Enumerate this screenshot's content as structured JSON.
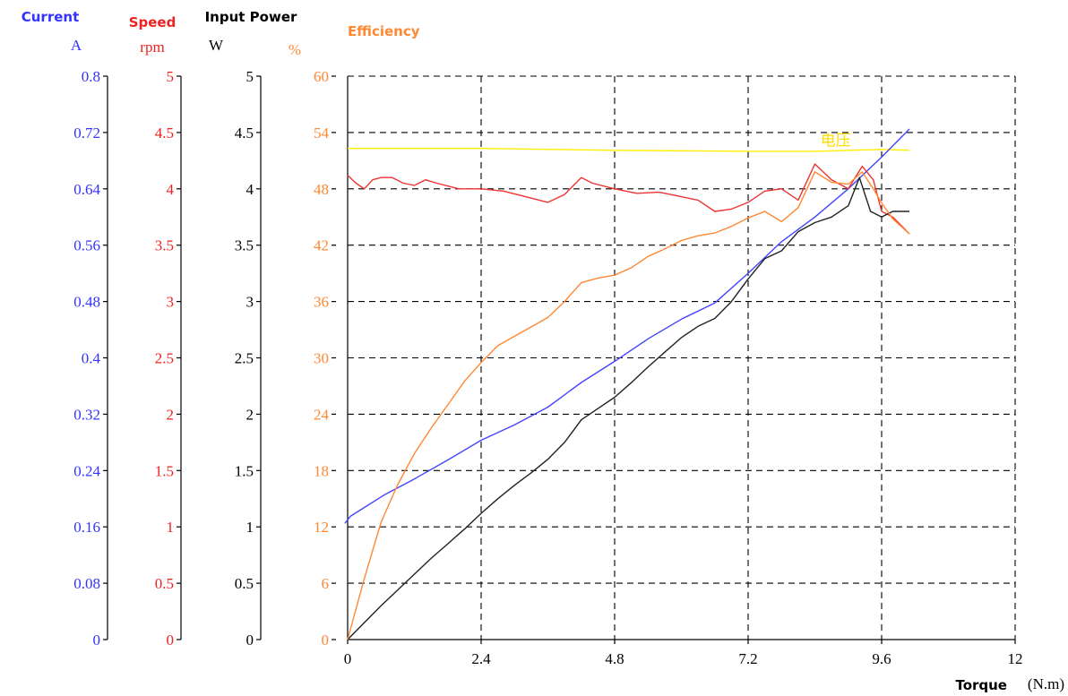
{
  "chart_data": {
    "type": "line",
    "x_axis": {
      "label": "Torque",
      "unit": "(N.m)",
      "range": [
        0,
        12
      ],
      "ticks": [
        0,
        2.4,
        4.8,
        7.2,
        9.6,
        12
      ],
      "tick_labels": [
        "0",
        "2.4",
        "4.8",
        "7.2",
        "9.6",
        "12"
      ]
    },
    "y_axes": [
      {
        "id": "current",
        "title": "Current",
        "unit": "A",
        "color": "#3333ff",
        "range": [
          0,
          0.8
        ],
        "ticks": [
          0,
          0.08,
          0.16,
          0.24,
          0.32,
          0.4,
          0.48,
          0.56,
          0.64,
          0.72,
          0.8
        ],
        "tick_labels": [
          "0",
          "0.08",
          "0.16",
          "0.24",
          "0.32",
          "0.4",
          "0.48",
          "0.56",
          "0.64",
          "0.72",
          "0.8"
        ]
      },
      {
        "id": "speed",
        "title": "Speed",
        "unit": "rpm",
        "color": "#ee2222",
        "range": [
          0,
          5
        ],
        "ticks": [
          0,
          0.5,
          1,
          1.5,
          2,
          2.5,
          3,
          3.5,
          4,
          4.5,
          5
        ],
        "tick_labels": [
          "0",
          "0.5",
          "1",
          "1.5",
          "2",
          "2.5",
          "3",
          "3.5",
          "4",
          "4.5",
          "5"
        ]
      },
      {
        "id": "power",
        "title": "Input Power",
        "unit": "W",
        "color": "#000000",
        "range": [
          0,
          5
        ],
        "ticks": [
          0,
          0.5,
          1,
          1.5,
          2,
          2.5,
          3,
          3.5,
          4,
          4.5,
          5
        ],
        "tick_labels": [
          "0",
          "0.5",
          "1",
          "1.5",
          "2",
          "2.5",
          "3",
          "3.5",
          "4",
          "4.5",
          "5"
        ]
      },
      {
        "id": "efficiency",
        "title": "Efficiency",
        "unit": "%",
        "color": "#ff8833",
        "range": [
          0,
          60
        ],
        "ticks": [
          0,
          6,
          12,
          18,
          24,
          30,
          36,
          42,
          48,
          54,
          60
        ],
        "tick_labels": [
          "0",
          "6",
          "12",
          "18",
          "24",
          "30",
          "36",
          "42",
          "48",
          "54",
          "60"
        ]
      }
    ],
    "grid": true,
    "annotations": [
      {
        "text": "电压",
        "x": 8.5,
        "y": 52.6,
        "axis": "efficiency",
        "color": "#ffdd00"
      }
    ],
    "series": [
      {
        "key": "voltage",
        "axis": "efficiency",
        "color": "#ffee00",
        "x": [
          0,
          2.4,
          4.8,
          7.2,
          8.4,
          9.6,
          10.1
        ],
        "y": [
          52.3,
          52.3,
          52.1,
          52.0,
          52.0,
          52.2,
          52.1
        ]
      },
      {
        "key": "current",
        "axis": "current",
        "color": "#4444ff",
        "x": [
          -0.05,
          0.05,
          0.65,
          1.2,
          1.8,
          2.4,
          3.0,
          3.6,
          4.2,
          4.8,
          5.4,
          6.0,
          6.6,
          7.2,
          7.8,
          8.4,
          9.0,
          9.6,
          10.1
        ],
        "y": [
          0.165,
          0.175,
          0.205,
          0.228,
          0.255,
          0.283,
          0.305,
          0.33,
          0.365,
          0.395,
          0.427,
          0.455,
          0.478,
          0.52,
          0.565,
          0.6,
          0.64,
          0.685,
          0.725
        ]
      },
      {
        "key": "speed",
        "axis": "speed",
        "color": "#ee3333",
        "x": [
          0,
          0.15,
          0.3,
          0.45,
          0.6,
          0.8,
          1.0,
          1.2,
          1.4,
          1.6,
          2.0,
          2.4,
          2.8,
          3.2,
          3.6,
          3.9,
          4.2,
          4.4,
          4.8,
          5.2,
          5.6,
          6.0,
          6.3,
          6.6,
          6.9,
          7.2,
          7.5,
          7.8,
          8.1,
          8.4,
          8.7,
          9.0,
          9.25,
          9.45,
          9.6,
          9.8,
          10.0,
          10.1
        ],
        "y": [
          4.12,
          4.05,
          4.0,
          4.08,
          4.1,
          4.1,
          4.05,
          4.03,
          4.08,
          4.05,
          4.0,
          4.0,
          3.98,
          3.93,
          3.88,
          3.95,
          4.1,
          4.05,
          4.0,
          3.96,
          3.97,
          3.93,
          3.9,
          3.8,
          3.82,
          3.88,
          3.98,
          4.0,
          3.9,
          4.22,
          4.08,
          4.0,
          4.2,
          4.08,
          3.8,
          3.75,
          3.65,
          3.6
        ]
      },
      {
        "key": "power",
        "axis": "power",
        "color": "#222222",
        "x": [
          0,
          0.3,
          0.6,
          0.9,
          1.2,
          1.5,
          1.8,
          2.1,
          2.4,
          2.7,
          3.0,
          3.3,
          3.6,
          3.9,
          4.2,
          4.5,
          4.8,
          5.1,
          5.4,
          5.7,
          6.0,
          6.3,
          6.6,
          6.9,
          7.2,
          7.5,
          7.8,
          8.1,
          8.4,
          8.7,
          9.0,
          9.2,
          9.4,
          9.6,
          9.8,
          10.1
        ],
        "y": [
          0,
          0.15,
          0.3,
          0.44,
          0.58,
          0.72,
          0.85,
          0.98,
          1.12,
          1.25,
          1.37,
          1.48,
          1.6,
          1.75,
          1.95,
          2.05,
          2.15,
          2.28,
          2.42,
          2.55,
          2.68,
          2.78,
          2.85,
          3.0,
          3.2,
          3.38,
          3.45,
          3.62,
          3.7,
          3.75,
          3.85,
          4.1,
          3.8,
          3.75,
          3.8,
          3.8
        ]
      },
      {
        "key": "efficiency",
        "axis": "efficiency",
        "color": "#ff8833",
        "x": [
          0,
          0.3,
          0.6,
          0.9,
          1.2,
          1.5,
          1.8,
          2.1,
          2.4,
          2.7,
          3.0,
          3.3,
          3.6,
          3.9,
          4.2,
          4.5,
          4.8,
          5.1,
          5.4,
          5.7,
          6.0,
          6.3,
          6.6,
          6.9,
          7.2,
          7.5,
          7.8,
          8.1,
          8.4,
          8.7,
          9.0,
          9.25,
          9.45,
          9.6,
          9.8,
          10.1
        ],
        "y": [
          0,
          6.5,
          12.5,
          16.5,
          19.8,
          22.5,
          25.0,
          27.5,
          29.5,
          31.3,
          32.3,
          33.3,
          34.3,
          36.0,
          38.0,
          38.5,
          38.8,
          39.6,
          40.8,
          41.6,
          42.5,
          43.0,
          43.3,
          44.0,
          44.9,
          45.6,
          44.5,
          46.0,
          49.8,
          48.7,
          48.5,
          49.8,
          48.0,
          46.5,
          44.8,
          43.2
        ]
      }
    ]
  }
}
